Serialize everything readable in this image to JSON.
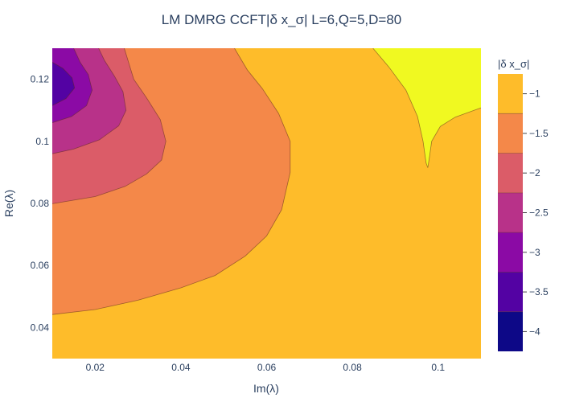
{
  "chart_data": {
    "type": "contour",
    "title": "LM DMRG CCFT|δ x_σ| L=6,Q=5,D=80",
    "xlabel": "Im(λ)",
    "ylabel": "Re(λ)",
    "xlim": [
      0.01,
      0.11
    ],
    "ylim": [
      0.03,
      0.13
    ],
    "x_ticks": [
      0.02,
      0.04,
      0.06,
      0.08,
      0.1
    ],
    "y_ticks": [
      0.04,
      0.06,
      0.08,
      0.1,
      0.12
    ],
    "x_tick_labels": [
      "0.02",
      "0.04",
      "0.06",
      "0.08",
      "0.1"
    ],
    "y_tick_labels": [
      "0.04",
      "0.06",
      "0.08",
      "0.1",
      "0.12"
    ],
    "colorbar": {
      "title": "|δ x_σ|",
      "range": [
        -4.25,
        -0.75
      ],
      "ticks": [
        -1,
        -1.5,
        -2,
        -2.5,
        -3,
        -3.5,
        -4
      ],
      "tick_labels": [
        "−1",
        "−1.5",
        "−2",
        "−2.5",
        "−3",
        "−3.5",
        "−4"
      ]
    },
    "levels": [
      {
        "min": -4.25,
        "max": -3.75,
        "color": "#0d0887"
      },
      {
        "min": -3.75,
        "max": -3.25,
        "color": "#5302a3"
      },
      {
        "min": -3.25,
        "max": -2.75,
        "color": "#8b0aa5"
      },
      {
        "min": -2.75,
        "max": -2.25,
        "color": "#b83289"
      },
      {
        "min": -2.25,
        "max": -1.75,
        "color": "#db5c68"
      },
      {
        "min": -1.75,
        "max": -1.25,
        "color": "#f48849"
      },
      {
        "min": -1.25,
        "max": -0.75,
        "color": "#febc2a"
      },
      {
        "min": -0.75,
        "max": -0.25,
        "color": "#f0f921"
      }
    ],
    "contours": [
      {
        "name": "contour-level-1.25",
        "color": "#f48849",
        "points": [
          [
            0.01,
            0.0442
          ],
          [
            0.02,
            0.0458
          ],
          [
            0.03,
            0.0488
          ],
          [
            0.04,
            0.0528
          ],
          [
            0.048,
            0.0568
          ],
          [
            0.055,
            0.063
          ],
          [
            0.06,
            0.0695
          ],
          [
            0.0635,
            0.078
          ],
          [
            0.0655,
            0.09
          ],
          [
            0.0655,
            0.1
          ],
          [
            0.0628,
            0.109
          ],
          [
            0.059,
            0.117
          ],
          [
            0.0555,
            0.123
          ],
          [
            0.0525,
            0.13
          ]
        ]
      },
      {
        "name": "contour-level-1.75",
        "color": "#db5c68",
        "points": [
          [
            0.01,
            0.0799
          ],
          [
            0.02,
            0.0822
          ],
          [
            0.027,
            0.0855
          ],
          [
            0.032,
            0.0895
          ],
          [
            0.0355,
            0.094
          ],
          [
            0.0365,
            0.1
          ],
          [
            0.0352,
            0.107
          ],
          [
            0.032,
            0.114
          ],
          [
            0.029,
            0.12
          ],
          [
            0.0268,
            0.13
          ]
        ]
      },
      {
        "name": "contour-level-2.25",
        "color": "#b83289",
        "points": [
          [
            0.01,
            0.096
          ],
          [
            0.015,
            0.0975
          ],
          [
            0.021,
            0.1005
          ],
          [
            0.0255,
            0.105
          ],
          [
            0.0272,
            0.11
          ],
          [
            0.0265,
            0.116
          ],
          [
            0.0245,
            0.121
          ],
          [
            0.0222,
            0.126
          ],
          [
            0.0208,
            0.13
          ]
        ]
      },
      {
        "name": "contour-level-2.75",
        "color": "#8b0aa5",
        "points": [
          [
            0.01,
            0.106
          ],
          [
            0.0145,
            0.108
          ],
          [
            0.018,
            0.1115
          ],
          [
            0.0193,
            0.1165
          ],
          [
            0.0184,
            0.1215
          ],
          [
            0.0165,
            0.1255
          ],
          [
            0.015,
            0.13
          ]
        ]
      },
      {
        "name": "contour-level-3.25",
        "color": "#5302a3",
        "points": [
          [
            0.01,
            0.1115
          ],
          [
            0.0132,
            0.1138
          ],
          [
            0.0152,
            0.1172
          ],
          [
            0.0146,
            0.1205
          ],
          [
            0.0125,
            0.1235
          ],
          [
            0.01,
            0.1255
          ]
        ]
      },
      {
        "name": "contour-level-0.75",
        "color": "#f0f921",
        "points": [
          [
            0.0848,
            0.13
          ],
          [
            0.0885,
            0.124
          ],
          [
            0.0925,
            0.1165
          ],
          [
            0.0952,
            0.108
          ],
          [
            0.0965,
            0.1
          ],
          [
            0.0972,
            0.093
          ],
          [
            0.0976,
            0.0915
          ],
          [
            0.098,
            0.095
          ],
          [
            0.0985,
            0.1
          ],
          [
            0.1005,
            0.1048
          ],
          [
            0.104,
            0.1078
          ],
          [
            0.11,
            0.1108
          ]
        ]
      }
    ]
  }
}
